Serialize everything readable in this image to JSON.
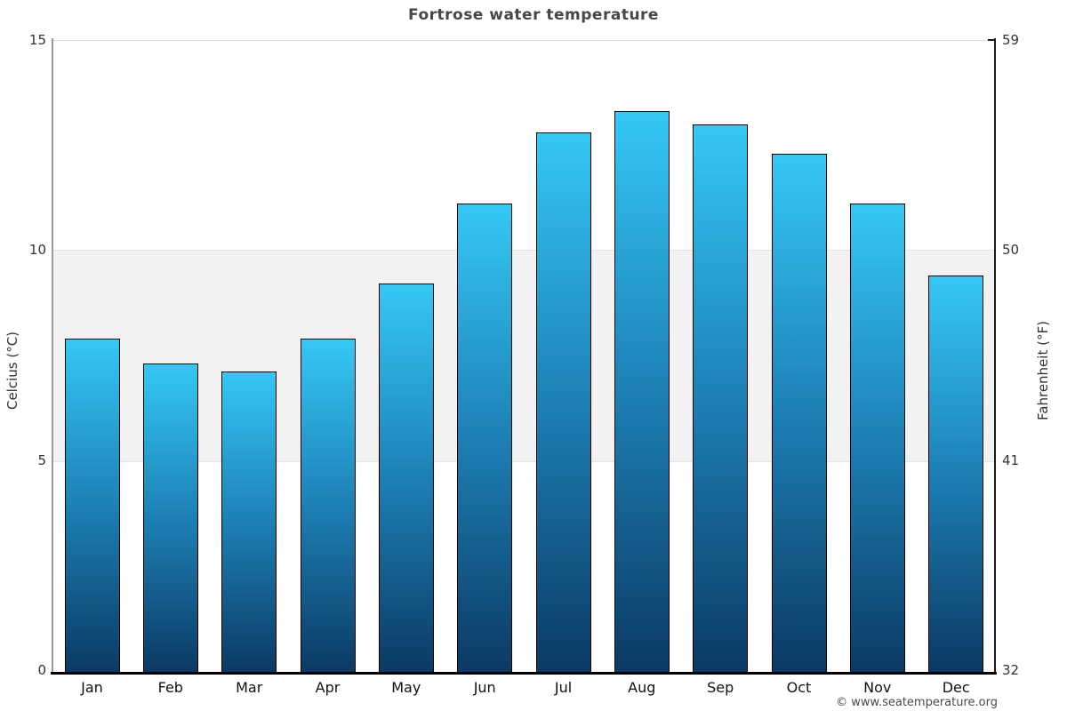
{
  "title": "Fortrose water temperature",
  "footer": {
    "copyright": "© www.seatemperature.org"
  },
  "axes": {
    "left": {
      "label": "Celcius (°C)",
      "ticks": [
        "0",
        "5",
        "10",
        "15"
      ]
    },
    "right": {
      "label": "Fahrenheit (°F)",
      "ticks": [
        "32",
        "41",
        "50",
        "59"
      ]
    },
    "bottom": {
      "ticks": [
        "Jan",
        "Feb",
        "Mar",
        "Apr",
        "May",
        "Jun",
        "Jul",
        "Aug",
        "Sep",
        "Oct",
        "Nov",
        "Dec"
      ]
    }
  },
  "colors": {
    "bar_top": "#35c8f5",
    "bar_mid": "#1d80b5",
    "bar_bottom": "#0b3a64",
    "bar_border": "#000000",
    "band": "#f2f2f2",
    "gridline": "#d9d9d9",
    "axis_left": "#9a9a9a",
    "axis_right": "#1a1a1a",
    "axis_bottom": "#000000",
    "title_color": "#474747",
    "tick_color": "#333333",
    "month_color": "#111111",
    "copyright_color": "#4a4a4a"
  },
  "chart_data": {
    "type": "bar",
    "title": "Fortrose water temperature",
    "categories": [
      "Jan",
      "Feb",
      "Mar",
      "Apr",
      "May",
      "Jun",
      "Jul",
      "Aug",
      "Sep",
      "Oct",
      "Nov",
      "Dec"
    ],
    "values": [
      7.9,
      7.3,
      7.1,
      7.9,
      9.2,
      11.1,
      12.8,
      13.3,
      13.0,
      12.3,
      11.1,
      9.4
    ],
    "ylabel_left": "Celcius (°C)",
    "ylabel_right": "Fahrenheit (°F)",
    "ylim": [
      0,
      15
    ],
    "yticks_left": [
      0,
      5,
      10,
      15
    ],
    "yticks_right": [
      32,
      41,
      50,
      59
    ],
    "band": {
      "from": 5,
      "to": 10
    },
    "grid": "horizontal-only",
    "legend": "none"
  }
}
